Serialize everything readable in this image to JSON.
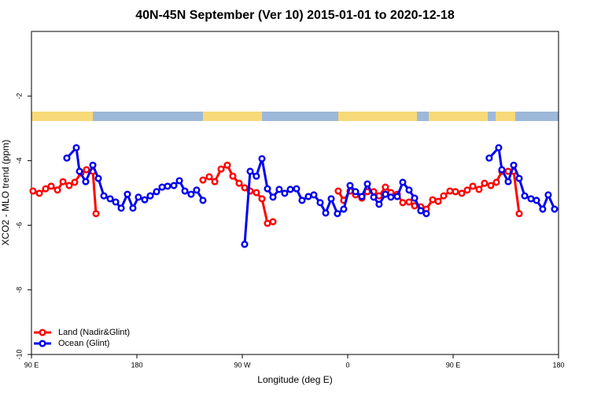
{
  "chart_data": {
    "type": "line",
    "title": "40N-45N September (Ver 10)   2015-01-01 to 2020-12-18",
    "x_label": "Longitude (deg E)",
    "y_label": "XCO2 - MLO trend (ppm)",
    "xlim": [
      90,
      540
    ],
    "ylim": [
      -10,
      0
    ],
    "xticks": [
      {
        "value": 90,
        "label": "90 E"
      },
      {
        "value": 180,
        "label": "180"
      },
      {
        "value": 270,
        "label": "90 W"
      },
      {
        "value": 360,
        "label": "0"
      },
      {
        "value": 450,
        "label": "90 E"
      },
      {
        "value": 540,
        "label": "180"
      }
    ],
    "yticks": [
      -10,
      -8,
      -6,
      -4,
      -2
    ],
    "legend": "bottom-left",
    "series": [
      {
        "name": "Land (Nadir&Glint)",
        "color": "#ff0000",
        "x": [
          91.3,
          96.7,
          102.1,
          106.8,
          112.2,
          116.9,
          122.2,
          126.9,
          132.3,
          137.0,
          142.4,
          145.1,
          null,
          236.4,
          241.8,
          246.5,
          251.9,
          257.2,
          261.9,
          267.3,
          272.0,
          276.7,
          282.0,
          286.8,
          291.5,
          296.2,
          null,
          351.9,
          356.6,
          362.0,
          366.7,
          372.1,
          376.8,
          382.2,
          386.8,
          392.2,
          396.9,
          402.3,
          407.0,
          412.4,
          417.1,
          422.4,
          427.1,
          432.5,
          437.2,
          441.9,
          447.3,
          452.0,
          457.4,
          462.1,
          466.8,
          472.1,
          476.8,
          482.2,
          486.9,
          491.6,
          497.0,
          501.7,
          506.4
        ],
        "values": [
          -4.94,
          -5.01,
          -4.87,
          -4.79,
          -4.91,
          -4.65,
          -4.77,
          -4.67,
          -4.38,
          -4.28,
          -4.33,
          -5.64,
          null,
          -4.6,
          -4.5,
          -4.65,
          -4.26,
          -4.14,
          -4.48,
          -4.7,
          -4.84,
          -4.94,
          -4.99,
          -5.18,
          -5.94,
          -5.89,
          null,
          -4.94,
          -5.23,
          -4.94,
          -5.06,
          -5.16,
          -4.96,
          -4.96,
          -5.09,
          -4.82,
          -4.99,
          -5.04,
          -5.3,
          -5.28,
          -5.4,
          -5.43,
          -5.5,
          -5.21,
          -5.26,
          -5.09,
          -4.94,
          -4.96,
          -5.01,
          -4.91,
          -4.79,
          -4.89,
          -4.7,
          -4.77,
          -4.67,
          -4.33,
          -4.33,
          -4.33,
          -5.64
        ]
      },
      {
        "name": "Ocean (Glint)",
        "color": "#0000ee",
        "x": [
          120.2,
          128.3,
          131.0,
          136.3,
          142.4,
          147.1,
          151.8,
          157.2,
          161.9,
          166.6,
          171.9,
          176.6,
          181.3,
          186.7,
          191.4,
          196.8,
          201.5,
          206.2,
          211.6,
          216.3,
          221.0,
          226.3,
          231.0,
          236.4,
          null,
          272.0,
          276.7,
          282.0,
          286.8,
          291.5,
          296.2,
          301.5,
          306.2,
          311.0,
          316.3,
          321.0,
          326.4,
          331.1,
          336.5,
          341.2,
          345.9,
          351.2,
          356.6,
          362.0,
          366.7,
          372.1,
          376.8,
          382.2,
          386.8,
          392.2,
          396.9,
          402.3,
          407.0,
          412.4,
          417.1,
          422.4,
          427.1,
          null,
          480.8,
          488.9,
          491.6,
          497.0,
          501.7,
          506.4,
          511.1,
          516.5,
          521.2,
          526.5,
          531.2,
          536.6
        ],
        "values": [
          -3.92,
          -3.6,
          -4.33,
          -4.65,
          -4.14,
          -4.55,
          -5.09,
          -5.18,
          -5.28,
          -5.47,
          -5.04,
          -5.47,
          -5.13,
          -5.21,
          -5.09,
          -4.96,
          -4.82,
          -4.79,
          -4.77,
          -4.62,
          -4.94,
          -5.04,
          -4.91,
          -5.23,
          null,
          -6.59,
          -4.33,
          -4.48,
          -3.94,
          -4.87,
          -5.13,
          -4.89,
          -5.01,
          -4.89,
          -4.87,
          -5.23,
          -5.11,
          -5.06,
          -5.3,
          -5.62,
          -5.18,
          -5.64,
          -5.5,
          -4.77,
          -4.96,
          -5.11,
          -4.72,
          -5.13,
          -5.35,
          -5.04,
          -5.13,
          -5.11,
          -4.67,
          -4.91,
          -5.16,
          -5.55,
          -5.64,
          null,
          -3.92,
          -3.6,
          -4.28,
          -4.65,
          -4.14,
          -4.55,
          -5.09,
          -5.18,
          -5.23,
          -5.5,
          -5.06,
          -5.5
        ]
      }
    ]
  }
}
